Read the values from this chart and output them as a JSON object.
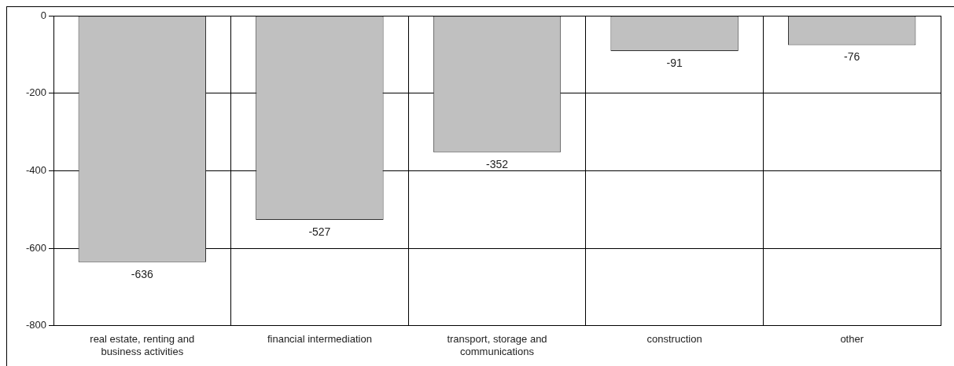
{
  "chart_data": {
    "type": "bar",
    "categories": [
      "real estate, renting and business activities",
      "financial intermediation",
      "transport, storage and communications",
      "construction",
      "other"
    ],
    "values": [
      -636,
      -527,
      -352,
      -91,
      -76
    ],
    "color": "#c0c0c0",
    "ylim": [
      -800,
      0
    ],
    "yticks": [
      -800,
      -600,
      -400,
      -200,
      0
    ],
    "grid": true,
    "data_labels": true,
    "legend": false
  }
}
